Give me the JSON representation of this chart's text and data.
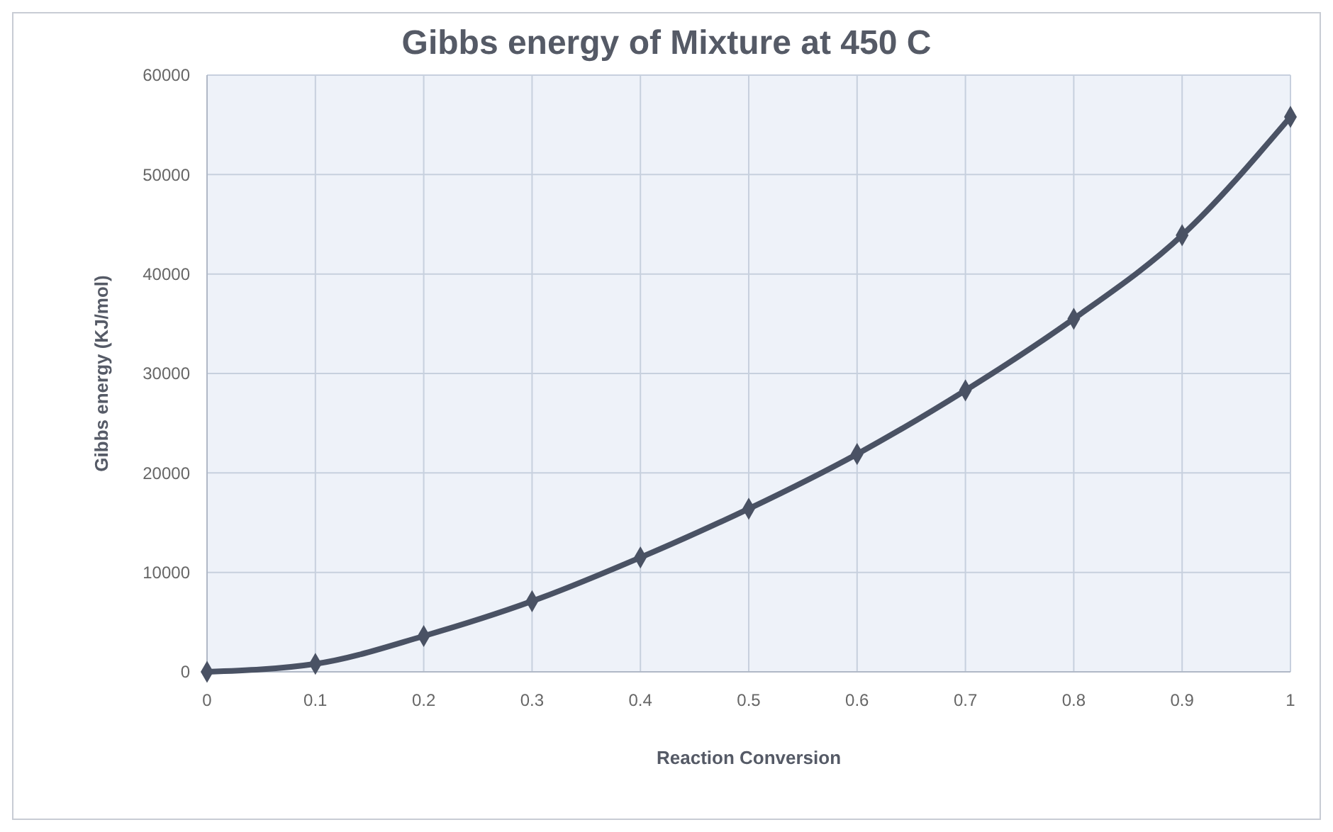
{
  "chart_data": {
    "type": "line",
    "title": "Gibbs energy of Mixture at 450 C",
    "xlabel": "Reaction Conversion",
    "ylabel": "Gibbs energy (KJ/mol)",
    "x": [
      0,
      0.1,
      0.2,
      0.3,
      0.4,
      0.5,
      0.6,
      0.7,
      0.8,
      0.9,
      1
    ],
    "series": [
      {
        "color": "#4a5264",
        "values": [
          0,
          800,
          3600,
          7100,
          11500,
          16400,
          21900,
          28300,
          35500,
          43900,
          55800
        ]
      }
    ],
    "xlim": [
      0,
      1
    ],
    "xticks": [
      0,
      0.1,
      0.2,
      0.3,
      0.4,
      0.5,
      0.6,
      0.7,
      0.8,
      0.9,
      1
    ],
    "ylim": [
      0,
      60000
    ],
    "yticks": [
      0,
      10000,
      20000,
      30000,
      40000,
      50000,
      60000
    ],
    "grid": true,
    "marker": "diamond",
    "line_style": "solid"
  }
}
